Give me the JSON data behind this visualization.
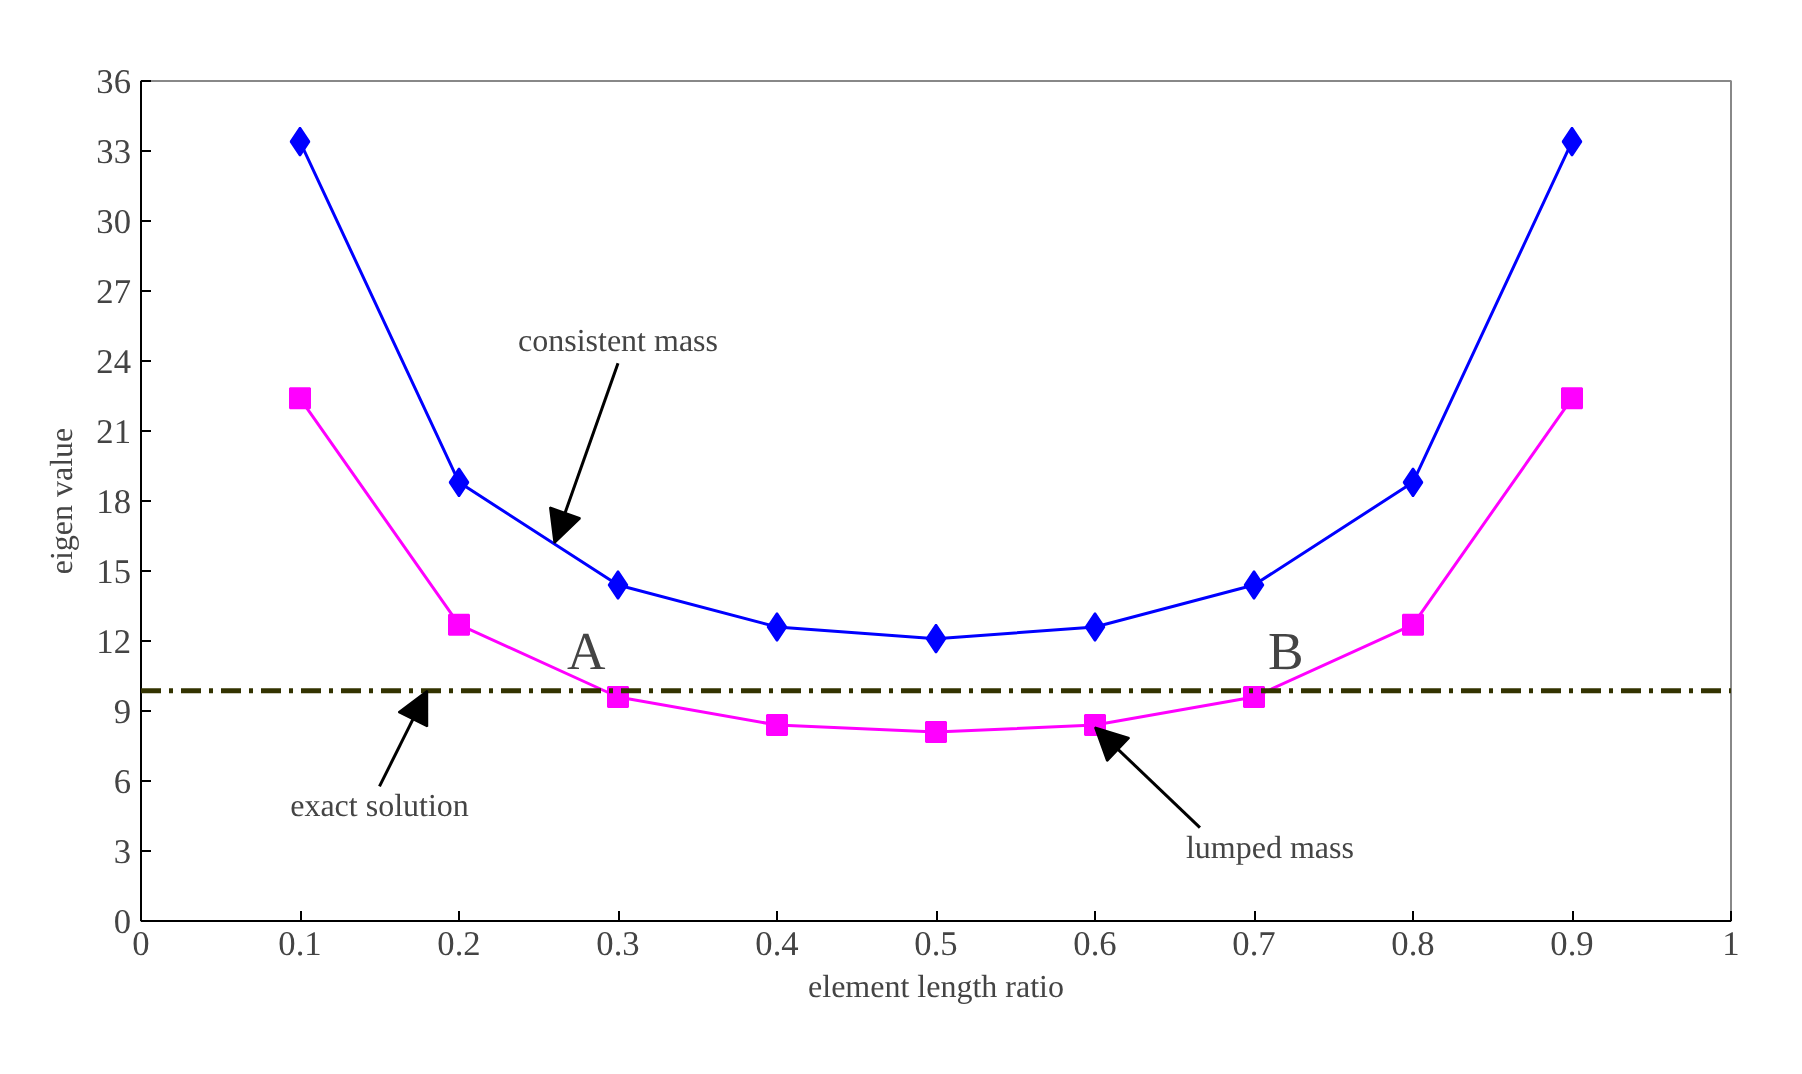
{
  "chart_data": {
    "type": "line",
    "xlabel": "element length ratio",
    "ylabel": "eigen value",
    "x": [
      0.1,
      0.2,
      0.3,
      0.4,
      0.5,
      0.6,
      0.7,
      0.8,
      0.9
    ],
    "series": [
      {
        "color": "#0000ff",
        "marker": "diamond",
        "values": [
          33.4,
          18.8,
          14.4,
          12.6,
          12.1,
          12.6,
          14.4,
          18.8,
          33.4
        ]
      },
      {
        "color": "#ff00ff",
        "marker": "square",
        "values": [
          22.4,
          12.7,
          9.6,
          8.4,
          8.1,
          8.4,
          9.6,
          12.7,
          22.4
        ]
      }
    ],
    "xlim": [
      0,
      1
    ],
    "xticks": [
      0,
      0.1,
      0.2,
      0.3,
      0.4,
      0.5,
      0.6,
      0.7,
      0.8,
      0.9,
      1
    ],
    "ylim": [
      0,
      36
    ],
    "yticks": [
      0,
      3,
      6,
      9,
      12,
      15,
      18,
      21,
      24,
      27,
      30,
      33,
      36
    ],
    "grid": false,
    "ref_lines": [
      {
        "axis": "y",
        "value": 9.87,
        "color": "#333300",
        "line_style": "dashdot"
      }
    ],
    "annotations": [
      {
        "text": "consistent mass",
        "x": 0.26,
        "y": 16.2
      },
      {
        "text": "exact solution",
        "x": 0.18,
        "y": 9.87
      },
      {
        "text": "lumped mass",
        "x": 0.6,
        "y": 8.3
      },
      {
        "text": "A",
        "x": 0.28,
        "y": 9.87
      },
      {
        "text": "B",
        "x": 0.72,
        "y": 9.87
      }
    ]
  }
}
